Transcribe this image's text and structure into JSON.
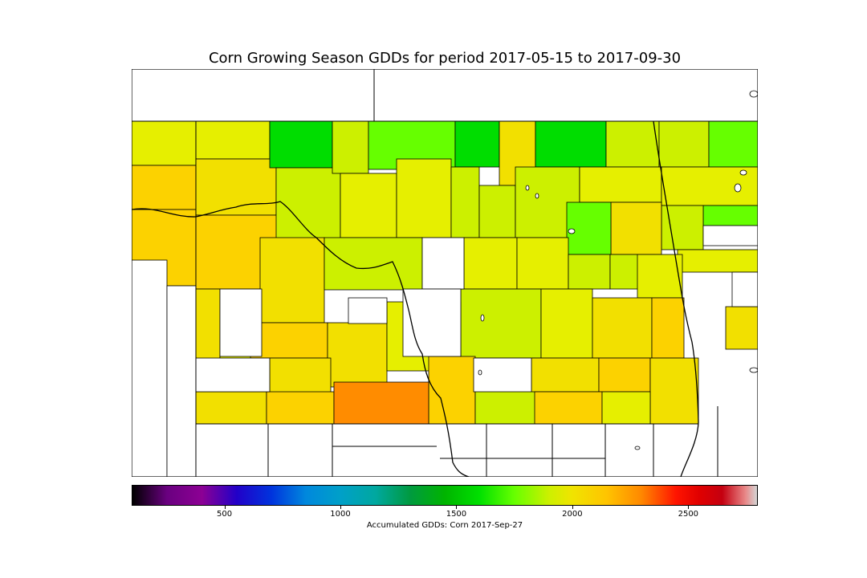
{
  "title": "Corn Growing Season GDDs for period 2017-05-15 to 2017-09-30",
  "colorbar": {
    "label": "Accumulated GDDs: Corn 2017-Sep-27",
    "min": 100,
    "max": 2800,
    "ticks": [
      500,
      1000,
      1500,
      2000,
      2500
    ],
    "stops": [
      {
        "value": 100,
        "color": "#000000"
      },
      {
        "value": 250,
        "color": "#6a0080"
      },
      {
        "value": 400,
        "color": "#8c0094"
      },
      {
        "value": 550,
        "color": "#2200c8"
      },
      {
        "value": 700,
        "color": "#0033dd"
      },
      {
        "value": 850,
        "color": "#0088dd"
      },
      {
        "value": 1000,
        "color": "#00a0c8"
      },
      {
        "value": 1150,
        "color": "#00a8a0"
      },
      {
        "value": 1300,
        "color": "#009a40"
      },
      {
        "value": 1450,
        "color": "#00b400"
      },
      {
        "value": 1600,
        "color": "#00e000"
      },
      {
        "value": 1750,
        "color": "#66ff00"
      },
      {
        "value": 1900,
        "color": "#ccf000"
      },
      {
        "value": 2000,
        "color": "#f0e400"
      },
      {
        "value": 2150,
        "color": "#ffc400"
      },
      {
        "value": 2300,
        "color": "#ff8800"
      },
      {
        "value": 2450,
        "color": "#ff1400"
      },
      {
        "value": 2550,
        "color": "#e00000"
      },
      {
        "value": 2650,
        "color": "#c40010"
      },
      {
        "value": 2750,
        "color": "#e88888"
      },
      {
        "value": 2800,
        "color": "#d4d4d4"
      }
    ]
  },
  "region_colors": {
    "no_data": "#ffffff",
    "lime": "#66ff00",
    "green": "#00dd00",
    "yellow_green": "#ccf000",
    "yellow": "#e6ef00",
    "gold": "#f2e000",
    "amber": "#fcd200",
    "orange": "#ff8c00"
  }
}
